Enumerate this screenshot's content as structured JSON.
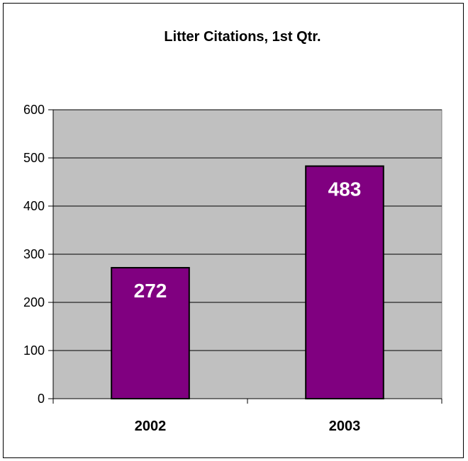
{
  "chart_data": {
    "type": "bar",
    "title": "Litter Citations, 1st Qtr.",
    "xlabel": "",
    "ylabel": "",
    "categories": [
      "2002",
      "2003"
    ],
    "values": [
      272,
      483
    ],
    "data_labels": [
      "272",
      "483"
    ],
    "ylim": [
      0,
      600
    ],
    "yticks": [
      0,
      100,
      200,
      300,
      400,
      500,
      600
    ],
    "ytick_labels": [
      "0",
      "100",
      "200",
      "300",
      "400",
      "500",
      "600"
    ],
    "grid": true,
    "legend": "none",
    "colors": {
      "bar": "#800080",
      "plot_background": "#c0c0c0",
      "gridline": "#000000",
      "data_label": "#ffffff"
    }
  }
}
